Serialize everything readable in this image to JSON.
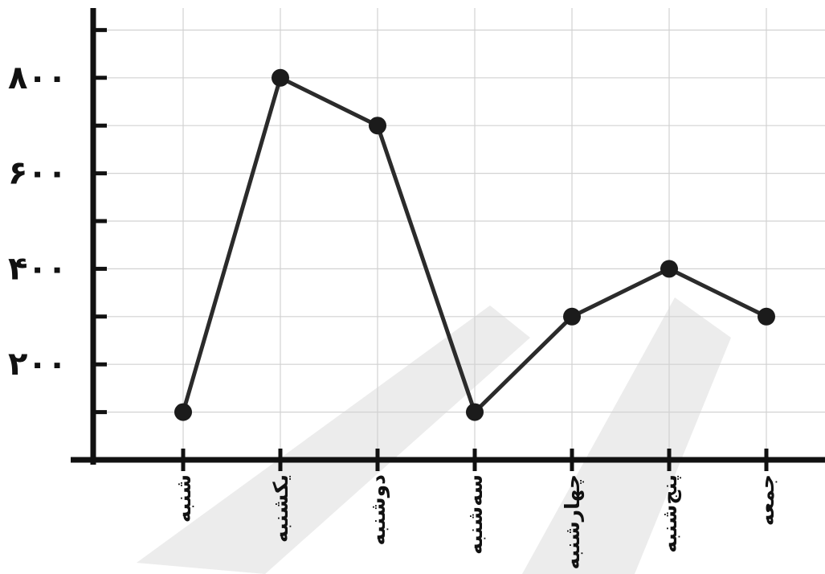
{
  "chart_data": {
    "type": "line",
    "title": "",
    "xlabel": "",
    "ylabel": "",
    "categories": [
      "شنبه",
      "یکشنبه",
      "دوشنبه",
      "سه‌شنبه",
      "چهارشنبه",
      "پنج‌شنبه",
      "جمعه"
    ],
    "series": [
      {
        "values": [
          100,
          800,
          700,
          100,
          300,
          400,
          300
        ]
      }
    ],
    "y_ticks": [
      200,
      400,
      600,
      800
    ],
    "y_tick_labels": [
      "۲۰۰",
      "۴۰۰",
      "۶۰۰",
      "۸۰۰"
    ],
    "ylim": [
      0,
      1000
    ],
    "grid": true,
    "colors": {
      "line": "#2b2b2b",
      "point": "#1b1b1b",
      "axis": "#111111",
      "grid": "#d2d2d2"
    }
  }
}
